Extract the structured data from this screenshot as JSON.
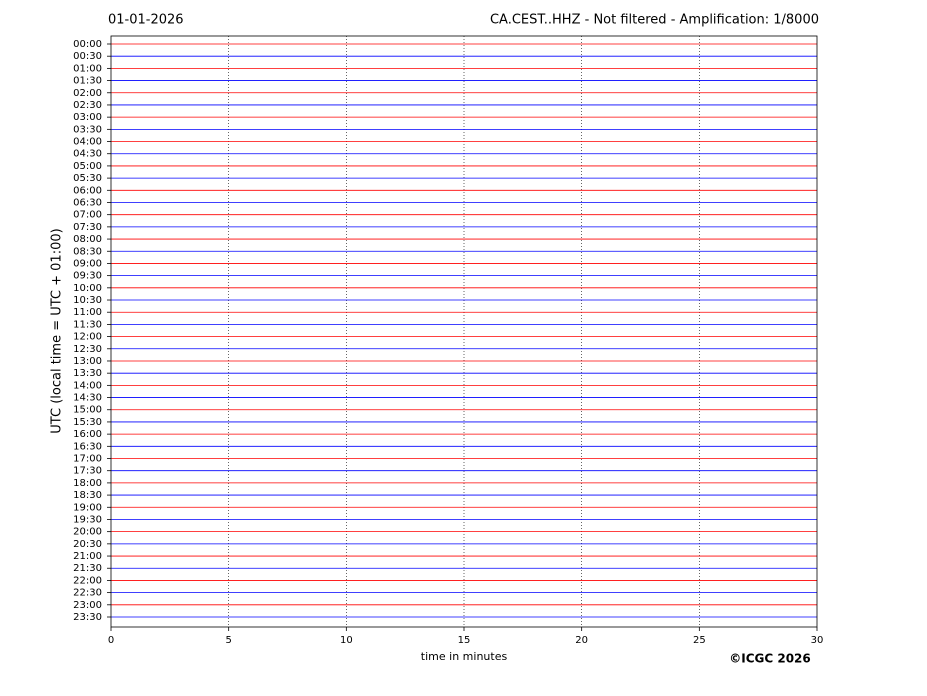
{
  "chart_data": {
    "type": "helicorder",
    "date": "01-01-2026",
    "title": "CA.CEST..HHZ - Not filtered - Amplification: 1/8000",
    "ylabel": "UTC (local time = UTC + 01:00)",
    "xlabel": "time in minutes",
    "credit": "©ICGC 2026",
    "categories": [
      "00:00",
      "00:30",
      "01:00",
      "01:30",
      "02:00",
      "02:30",
      "03:00",
      "03:30",
      "04:00",
      "04:30",
      "05:00",
      "05:30",
      "06:00",
      "06:30",
      "07:00",
      "07:30",
      "08:00",
      "08:30",
      "09:00",
      "09:30",
      "10:00",
      "10:30",
      "11:00",
      "11:30",
      "12:00",
      "12:30",
      "13:00",
      "13:30",
      "14:00",
      "14:30",
      "15:00",
      "15:30",
      "16:00",
      "16:30",
      "17:00",
      "17:30",
      "18:00",
      "18:30",
      "19:00",
      "19:30",
      "20:00",
      "20:30",
      "21:00",
      "21:30",
      "22:00",
      "22:30",
      "23:00",
      "23:30"
    ],
    "colors": [
      "#ff0000",
      "#0000ff"
    ],
    "xlim": [
      0,
      30
    ],
    "xticks": [
      0,
      5,
      10,
      15,
      20,
      25,
      30
    ],
    "grid": true
  }
}
